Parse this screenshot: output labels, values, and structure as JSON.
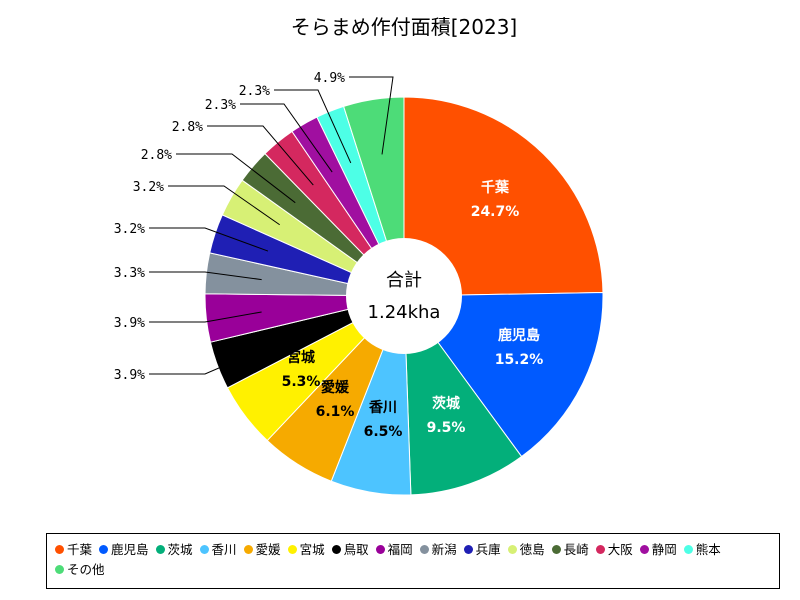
{
  "chart_data": {
    "type": "pie",
    "title": "そらまめ作付面積[2023]",
    "center_label": "合計",
    "center_value": "1.24kha",
    "slices": [
      {
        "name": "千葉",
        "value": 24.7,
        "label": "24.7%",
        "color": "#ff5000"
      },
      {
        "name": "鹿児島",
        "value": 15.2,
        "label": "15.2%",
        "color": "#005aff"
      },
      {
        "name": "茨城",
        "value": 9.5,
        "label": "9.5%",
        "color": "#03af7a"
      },
      {
        "name": "香川",
        "value": 6.5,
        "label": "6.5%",
        "color": "#4dc4ff"
      },
      {
        "name": "愛媛",
        "value": 6.1,
        "label": "6.1%",
        "color": "#f6aa00"
      },
      {
        "name": "宮城",
        "value": 5.3,
        "label": "5.3%",
        "color": "#fff100"
      },
      {
        "name": "鳥取",
        "value": 3.9,
        "label": "3.9%",
        "color": "#000000"
      },
      {
        "name": "福岡",
        "value": 3.9,
        "label": "3.9%",
        "color": "#990099"
      },
      {
        "name": "新潟",
        "value": 3.3,
        "label": "3.3%",
        "color": "#84919e"
      },
      {
        "name": "兵庫",
        "value": 3.2,
        "label": "3.2%",
        "color": "#1f1fb4"
      },
      {
        "name": "徳島",
        "value": 3.2,
        "label": "3.2%",
        "color": "#d7f075"
      },
      {
        "name": "長崎",
        "value": 2.8,
        "label": "2.8%",
        "color": "#4b6b35"
      },
      {
        "name": "大阪",
        "value": 2.8,
        "label": "2.8%",
        "color": "#d4285f"
      },
      {
        "name": "静岡",
        "value": 2.3,
        "label": "2.3%",
        "color": "#a00fa0"
      },
      {
        "name": "熊本",
        "value": 2.3,
        "label": "2.3%",
        "color": "#4dffe6"
      },
      {
        "name": "その他",
        "value": 4.9,
        "label": "4.9%",
        "color": "#4ddc78"
      }
    ],
    "legend_position": "bottom"
  }
}
